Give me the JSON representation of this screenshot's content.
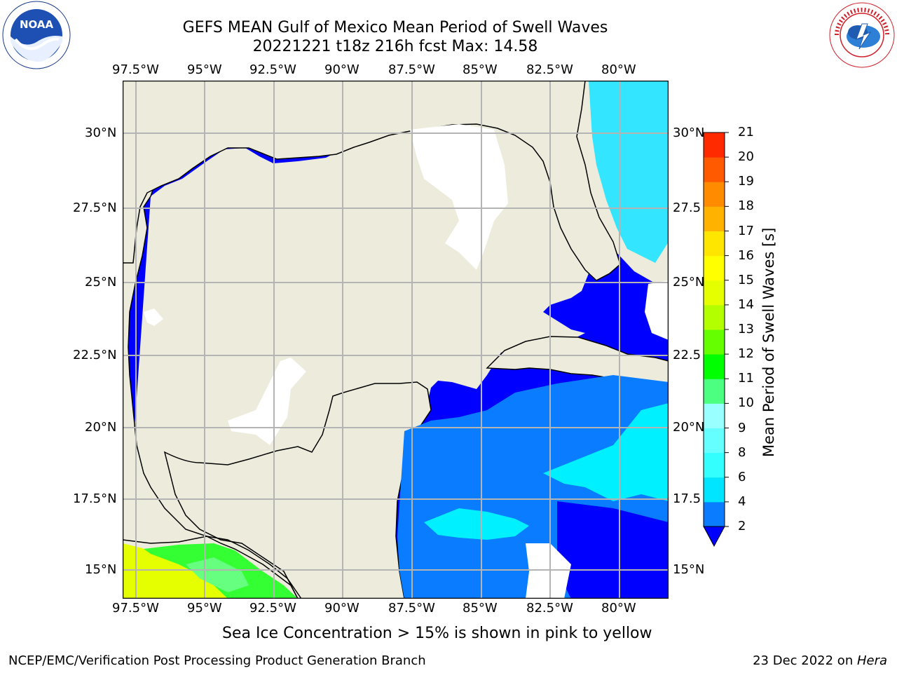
{
  "title": {
    "line1": "GEFS MEAN Gulf of Mexico Mean Period of Swell Waves",
    "line2": "20221221 t18z 216h fcst   Max: 14.58"
  },
  "logos": {
    "left": "NOAA",
    "left_ring": "NATIONAL OCEANIC AND ATMOSPHERIC ADMINISTRATION · U.S. DEPARTMENT OF COMMERCE",
    "right": "NATIONAL WEATHER SERVICE"
  },
  "axes": {
    "lon_ticks": [
      "97.5°W",
      "95°W",
      "92.5°W",
      "90°W",
      "87.5°W",
      "85°W",
      "82.5°W",
      "80°W"
    ],
    "lat_ticks_left": [
      "30°N",
      "27.5°N",
      "25°N",
      "22.5°N",
      "20°N",
      "17.5°N",
      "15°N"
    ],
    "lat_ticks_right": [
      "30°N",
      "27.5",
      "25°N",
      "22.5",
      "20°N",
      "17.5",
      "15°N"
    ]
  },
  "colorbar": {
    "title": "Mean Period of Swell Waves [s]",
    "levels": [
      "2",
      "4",
      "6",
      "8",
      "9",
      "10",
      "11",
      "12",
      "13",
      "14",
      "15",
      "16",
      "17",
      "18",
      "19",
      "20",
      "21"
    ],
    "colors": [
      "#0a7cff",
      "#00e5ff",
      "#33ffff",
      "#66ffff",
      "#99ffff",
      "#4dff80",
      "#00ff00",
      "#66ff00",
      "#b3ff00",
      "#e6ff00",
      "#ffff00",
      "#ffe600",
      "#ffb300",
      "#ff8c00",
      "#ff5a00",
      "#ff2a00"
    ],
    "under_color": "#0000ff"
  },
  "caption": "Sea Ice Concentration > 15% is shown in pink to yellow",
  "footer": {
    "left": "NCEP/EMC/Verification Post Processing Product Generation Branch",
    "right_date": "23 Dec 2022 on ",
    "right_host": "Hera"
  }
}
